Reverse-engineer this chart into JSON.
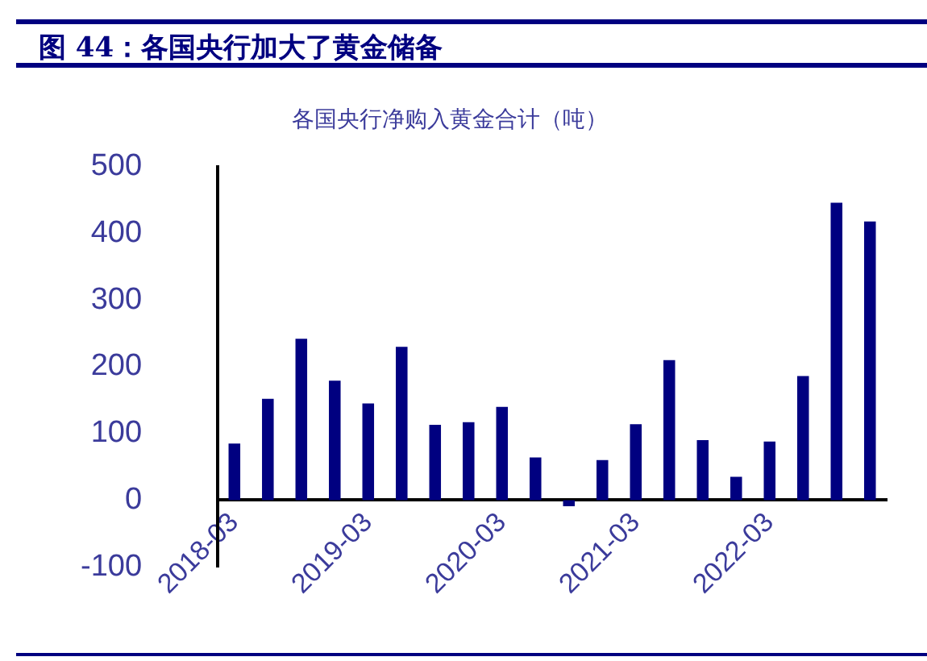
{
  "chart_data": {
    "type": "bar",
    "title": "图 44：各国央行加大了黄金储备",
    "subtitle": "各国央行净购入黄金合计（吨）",
    "categories": [
      "2018-03",
      null,
      null,
      null,
      "2019-03",
      null,
      null,
      null,
      "2020-03",
      null,
      null,
      null,
      "2021-03",
      null,
      null,
      null,
      "2022-03",
      null,
      null,
      null
    ],
    "values": [
      85,
      152,
      242,
      179,
      145,
      230,
      113,
      117,
      140,
      64,
      -9,
      60,
      114,
      210,
      90,
      35,
      88,
      186,
      446,
      418
    ],
    "color": "#000080",
    "ylim": [
      -100,
      500
    ],
    "yticks": [
      -100,
      0,
      100,
      200,
      300,
      400,
      500
    ],
    "grid": false,
    "legend": false
  }
}
